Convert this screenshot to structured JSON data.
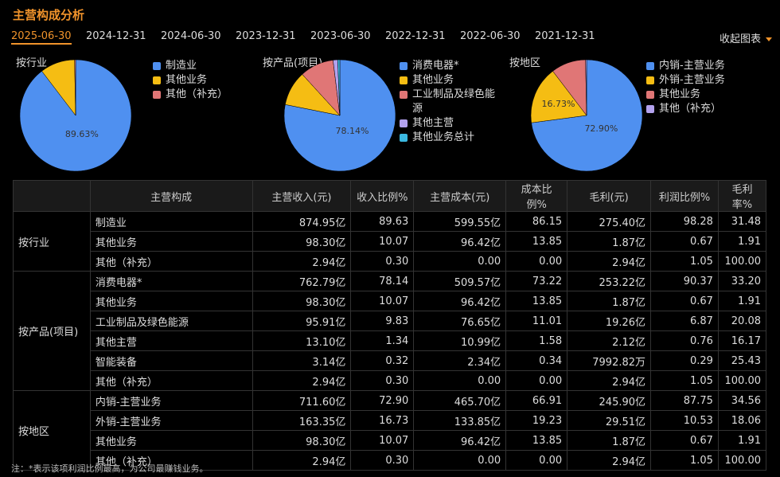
{
  "title": "主营构成分析",
  "tabs": [
    "2025-06-30",
    "2024-12-31",
    "2024-06-30",
    "2023-12-31",
    "2023-06-30",
    "2022-12-31",
    "2022-06-30",
    "2021-12-31"
  ],
  "active_tab": "2025-06-30",
  "collapse_label": "收起图表",
  "colors": {
    "blue": "#4f90f0",
    "yellow": "#f5bd13",
    "red": "#e07676",
    "purple": "#b3a2ee",
    "cyan": "#3bb8e0",
    "accent": "#f0932b"
  },
  "chart_data": [
    {
      "type": "pie",
      "title": "按行业",
      "labels": [
        "制造业",
        "其他业务",
        "其他（补充）"
      ],
      "values": [
        89.63,
        10.07,
        0.3
      ],
      "colors": [
        "#4f90f0",
        "#f5bd13",
        "#e07676"
      ],
      "data_labels": [
        "89.63%",
        "",
        ""
      ]
    },
    {
      "type": "pie",
      "title": "按产品(项目)",
      "labels": [
        "消费电器*",
        "其他业务",
        "工业制品及绿色能源",
        "其他主营",
        "其他业务总计"
      ],
      "values": [
        78.14,
        10.07,
        9.83,
        1.34,
        0.62
      ],
      "colors": [
        "#4f90f0",
        "#f5bd13",
        "#e07676",
        "#b3a2ee",
        "#3bb8e0"
      ],
      "data_labels": [
        "78.14%",
        "",
        "",
        "",
        ""
      ]
    },
    {
      "type": "pie",
      "title": "按地区",
      "labels": [
        "内销-主营业务",
        "外销-主营业务",
        "其他业务",
        "其他（补充）"
      ],
      "values": [
        72.9,
        16.73,
        10.07,
        0.3
      ],
      "colors": [
        "#4f90f0",
        "#f5bd13",
        "#e07676",
        "#b3a2ee"
      ],
      "data_labels": [
        "72.90%",
        "16.73%",
        "",
        ""
      ]
    }
  ],
  "legend_wrapped": {
    "工业制品及绿色能源": [
      "工业制品及绿色能",
      "源"
    ]
  },
  "table": {
    "headers": [
      "",
      "主营构成",
      "主营收入(元)",
      "收入比例%",
      "主营成本(元)",
      "成本比例%",
      "毛利(元)",
      "利润比例%",
      "毛利率%"
    ],
    "groups": [
      {
        "name": "按行业",
        "rows": [
          [
            "制造业",
            "874.95亿",
            "89.63",
            "599.55亿",
            "86.15",
            "275.40亿",
            "98.28",
            "31.48"
          ],
          [
            "其他业务",
            "98.30亿",
            "10.07",
            "96.42亿",
            "13.85",
            "1.87亿",
            "0.67",
            "1.91"
          ],
          [
            "其他（补充）",
            "2.94亿",
            "0.30",
            "0.00",
            "0.00",
            "2.94亿",
            "1.05",
            "100.00"
          ]
        ]
      },
      {
        "name": "按产品(项目)",
        "rows": [
          [
            "消费电器*",
            "762.79亿",
            "78.14",
            "509.57亿",
            "73.22",
            "253.22亿",
            "90.37",
            "33.20"
          ],
          [
            "其他业务",
            "98.30亿",
            "10.07",
            "96.42亿",
            "13.85",
            "1.87亿",
            "0.67",
            "1.91"
          ],
          [
            "工业制品及绿色能源",
            "95.91亿",
            "9.83",
            "76.65亿",
            "11.01",
            "19.26亿",
            "6.87",
            "20.08"
          ],
          [
            "其他主营",
            "13.10亿",
            "1.34",
            "10.99亿",
            "1.58",
            "2.12亿",
            "0.76",
            "16.17"
          ],
          [
            "智能装备",
            "3.14亿",
            "0.32",
            "2.34亿",
            "0.34",
            "7992.82万",
            "0.29",
            "25.43"
          ],
          [
            "其他（补充）",
            "2.94亿",
            "0.30",
            "0.00",
            "0.00",
            "2.94亿",
            "1.05",
            "100.00"
          ]
        ]
      },
      {
        "name": "按地区",
        "rows": [
          [
            "内销-主营业务",
            "711.60亿",
            "72.90",
            "465.70亿",
            "66.91",
            "245.90亿",
            "87.75",
            "34.56"
          ],
          [
            "外销-主营业务",
            "163.35亿",
            "16.73",
            "133.85亿",
            "19.23",
            "29.51亿",
            "10.53",
            "18.06"
          ],
          [
            "其他业务",
            "98.30亿",
            "10.07",
            "96.42亿",
            "13.85",
            "1.87亿",
            "0.67",
            "1.91"
          ],
          [
            "其他（补充）",
            "2.94亿",
            "0.30",
            "0.00",
            "0.00",
            "2.94亿",
            "1.05",
            "100.00"
          ]
        ]
      }
    ]
  },
  "note": "注：*表示该项利润比例最高，为公司最赚钱业务。"
}
